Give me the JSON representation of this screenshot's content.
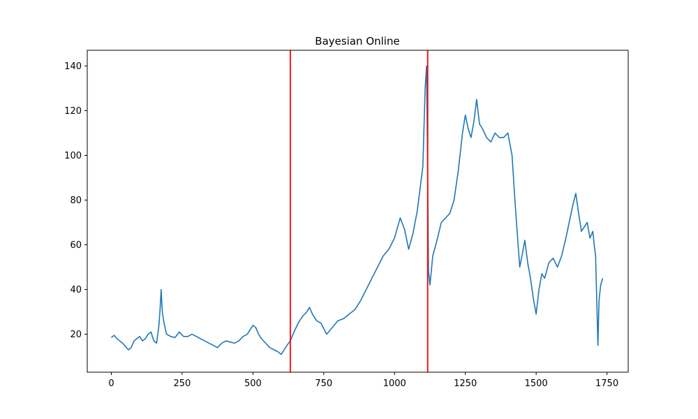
{
  "chart_data": {
    "type": "line",
    "title": "Bayesian Online",
    "xlabel": "",
    "ylabel": "",
    "xlim": [
      -85,
      1825
    ],
    "ylim": [
      3,
      147
    ],
    "xticks": [
      0,
      250,
      500,
      750,
      1000,
      1250,
      1500,
      1750
    ],
    "yticks": [
      20,
      40,
      60,
      80,
      100,
      120,
      140
    ],
    "grid": false,
    "line_color": "#1f77b4",
    "changepoint_color": "#ff0000",
    "changepoints": [
      632,
      1117
    ],
    "series": [
      {
        "x": [
          0,
          10,
          20,
          30,
          40,
          50,
          60,
          70,
          80,
          90,
          100,
          110,
          120,
          130,
          140,
          150,
          160,
          168,
          172,
          176,
          180,
          186,
          195,
          210,
          225,
          240,
          255,
          270,
          285,
          300,
          315,
          330,
          345,
          360,
          375,
          390,
          405,
          420,
          435,
          450,
          465,
          480,
          490,
          500,
          510,
          520,
          530,
          545,
          560,
          575,
          590,
          600,
          610,
          620,
          632,
          645,
          660,
          675,
          690,
          700,
          710,
          725,
          740,
          760,
          780,
          800,
          820,
          840,
          860,
          880,
          900,
          920,
          940,
          960,
          980,
          1000,
          1020,
          1035,
          1050,
          1065,
          1080,
          1090,
          1100,
          1108,
          1113,
          1117,
          1120,
          1125,
          1135,
          1150,
          1165,
          1180,
          1195,
          1210,
          1225,
          1240,
          1250,
          1260,
          1270,
          1280,
          1290,
          1300,
          1310,
          1325,
          1340,
          1355,
          1370,
          1385,
          1400,
          1415,
          1425,
          1435,
          1442,
          1450,
          1460,
          1470,
          1480,
          1490,
          1500,
          1510,
          1520,
          1530,
          1545,
          1560,
          1575,
          1590,
          1605,
          1620,
          1630,
          1640,
          1650,
          1660,
          1670,
          1680,
          1690,
          1700,
          1705,
          1710,
          1715,
          1718,
          1722,
          1728,
          1735
        ],
        "y": [
          18.5,
          19.5,
          18,
          17,
          16,
          14.5,
          13,
          14,
          17,
          18,
          19,
          17,
          18,
          20,
          21,
          17,
          16,
          24,
          31,
          40,
          30,
          25,
          20,
          19,
          18.5,
          21,
          19,
          19,
          20,
          19,
          18,
          17,
          16,
          15,
          14,
          16,
          17,
          16.5,
          16,
          17,
          19,
          20,
          22,
          24,
          23,
          20,
          18,
          16,
          14,
          13,
          12,
          11,
          13,
          15,
          17,
          21,
          25,
          28,
          30,
          32,
          29,
          26,
          25,
          20,
          23,
          26,
          27,
          29,
          31,
          35,
          40,
          45,
          50,
          55,
          58,
          63,
          72,
          67,
          58,
          65,
          75,
          85,
          95,
          130,
          140,
          92,
          48,
          42,
          55,
          62,
          70,
          72,
          74,
          80,
          93,
          110,
          118,
          112,
          108,
          115,
          125,
          114,
          112,
          108,
          106,
          110,
          108,
          108,
          110,
          100,
          80,
          62,
          50,
          55,
          62,
          52,
          45,
          36,
          29,
          40,
          47,
          45,
          52,
          54,
          50,
          55,
          63,
          72,
          78,
          83,
          74,
          66,
          68,
          70,
          63,
          66,
          60,
          55,
          30,
          15,
          35,
          42,
          45
        ]
      }
    ]
  }
}
